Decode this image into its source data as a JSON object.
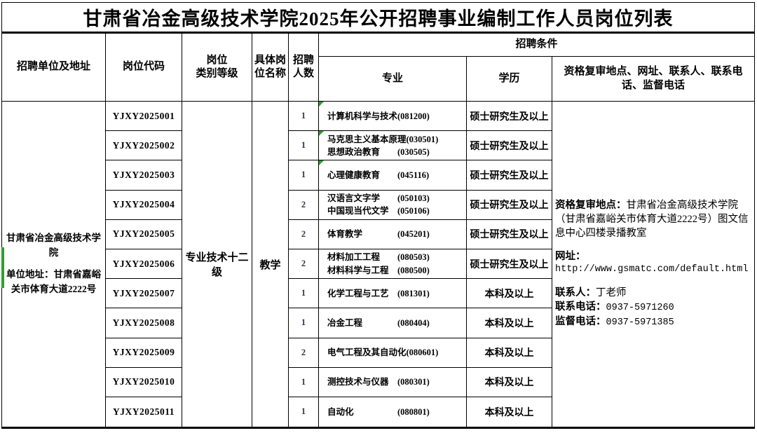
{
  "title": "甘肃省冶金高级技术学院2025年公开招聘事业编制工作人员岗位列表",
  "header": {
    "unit": "招聘单位及地址",
    "code": "岗位代码",
    "category_l1": "岗位",
    "category_l2": "类别等级",
    "job_l1": "具体岗",
    "job_l2": "位名称",
    "count_l1": "招聘",
    "count_l2": "人数",
    "conditions": "招聘条件",
    "major": "专业",
    "degree": "学历",
    "contact": "资格复审地点、网址、联系人、联系电话、监督电话"
  },
  "unit_cell": {
    "name": "甘肃省冶金高级技术学院",
    "address": "单位地址：甘肃省嘉峪关市体育大道2222号"
  },
  "category_value": "专业技术十二级",
  "job_title_value": "教学",
  "rows": [
    {
      "code": "YJXY2025001",
      "count": "1",
      "majors": [
        {
          "name": "计算机科学与技术",
          "mcode": "(081200)"
        }
      ],
      "degree": "硕士研究生及以上"
    },
    {
      "code": "YJXY2025002",
      "count": "1",
      "majors": [
        {
          "name": "马克思主义基本原理",
          "mcode": "(030501)"
        },
        {
          "name": "思想政治教育",
          "mcode": "(030505)"
        }
      ],
      "degree": "硕士研究生及以上"
    },
    {
      "code": "YJXY2025003",
      "count": "1",
      "majors": [
        {
          "name": "心理健康教育",
          "mcode": "(045116)"
        }
      ],
      "degree": "硕士研究生及以上"
    },
    {
      "code": "YJXY2025004",
      "count": "2",
      "majors": [
        {
          "name": "汉语言文字学",
          "mcode": "(050103)"
        },
        {
          "name": "中国现当代文学",
          "mcode": "(050106)"
        }
      ],
      "degree": "硕士研究生及以上"
    },
    {
      "code": "YJXY2025005",
      "count": "2",
      "majors": [
        {
          "name": "体育教学",
          "mcode": "(045201)"
        }
      ],
      "degree": "硕士研究生及以上"
    },
    {
      "code": "YJXY2025006",
      "count": "2",
      "majors": [
        {
          "name": "材料加工工程",
          "mcode": "(080503)"
        },
        {
          "name": "材料科学与工程",
          "mcode": "(080500)"
        }
      ],
      "degree": "硕士研究生及以上"
    },
    {
      "code": "YJXY2025007",
      "count": "1",
      "majors": [
        {
          "name": "化学工程与工艺",
          "mcode": "(081301)"
        }
      ],
      "degree": "本科及以上"
    },
    {
      "code": "YJXY2025008",
      "count": "1",
      "majors": [
        {
          "name": "冶金工程",
          "mcode": "(080404)"
        }
      ],
      "degree": "本科及以上"
    },
    {
      "code": "YJXY2025009",
      "count": "2",
      "majors": [
        {
          "name": "电气工程及其自动化",
          "mcode": "(080601)"
        }
      ],
      "degree": "本科及以上"
    },
    {
      "code": "YJXY2025010",
      "count": "1",
      "majors": [
        {
          "name": "测控技术与仪器",
          "mcode": "(080301)"
        }
      ],
      "degree": "本科及以上"
    },
    {
      "code": "YJXY2025011",
      "count": "1",
      "majors": [
        {
          "name": "自动化",
          "mcode": "(080801)"
        }
      ],
      "degree": "本科及以上"
    }
  ],
  "contact_cell": {
    "review_label": "资格复审地点：",
    "review_value": "甘肃省冶金高级技术学院（甘肃省嘉峪关市体育大道2222号）图文信息中心四楼录播教室",
    "website_label": "网址：",
    "website_value": "http://www.gsmatc.com/default.html",
    "person_label": "联系人：",
    "person_value": "丁老师",
    "phone_label": "联系电话：",
    "phone_value": "0937-5971260",
    "supervise_label": "监督电话：",
    "supervise_value": "0937-5971385"
  },
  "colors": {
    "border": "#000000",
    "flag_green": "#2f9e33"
  }
}
